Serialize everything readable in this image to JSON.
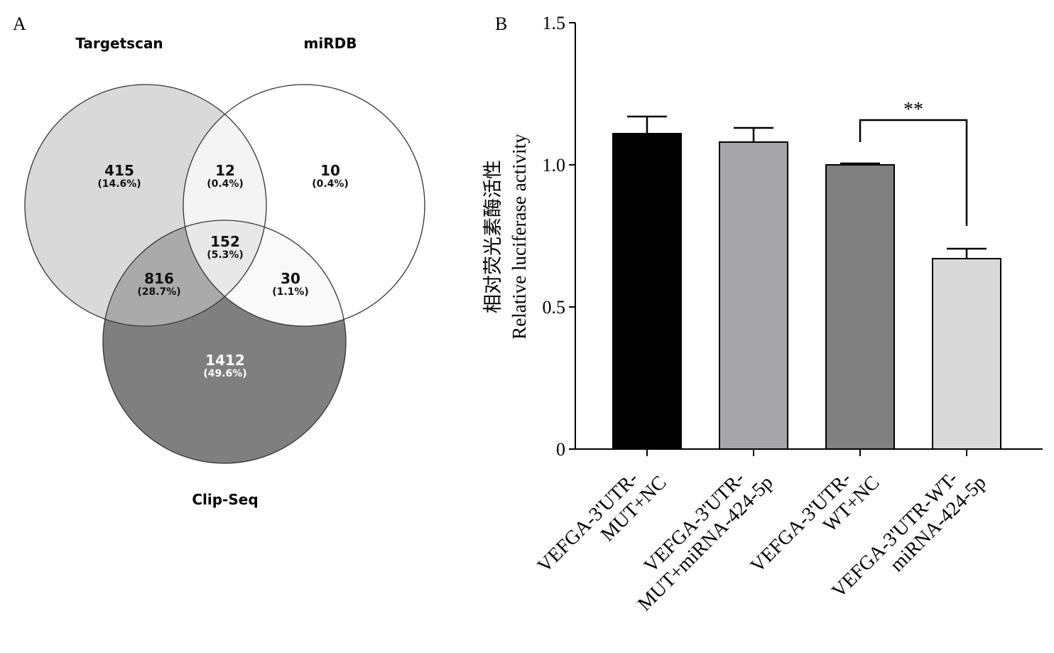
{
  "panel_a": {
    "label": "A",
    "set_labels": {
      "targetscan": "Targetscan",
      "mirdb": "miRDB",
      "clipseq": "Clip-Seq"
    },
    "regions": [
      {
        "id": "ts-only",
        "count": "415",
        "pct": "(14.6%)",
        "fill": "#d9d9d9"
      },
      {
        "id": "ts-mirdb",
        "count": "12",
        "pct": "(0.4%)",
        "fill": "#f4f4f4"
      },
      {
        "id": "mirdb-only",
        "count": "10",
        "pct": "(0.4%)",
        "fill": "#ffffff"
      },
      {
        "id": "all-three",
        "count": "152",
        "pct": "(5.3%)",
        "fill": "#e8e8e8"
      },
      {
        "id": "ts-clip",
        "count": "816",
        "pct": "(28.7%)",
        "fill": "#aaaaaa"
      },
      {
        "id": "mirdb-clip",
        "count": "30",
        "pct": "(1.1%)",
        "fill": "#f9f9f9"
      },
      {
        "id": "clip-only",
        "count": "1412",
        "pct": "(49.6%)",
        "fill": "#7f7f7f"
      }
    ]
  },
  "panel_b": {
    "label": "B"
  },
  "chart_data": {
    "type": "bar",
    "categories": [
      "VEFGA-3'UTR-MUT+NC",
      "VEFGA-3'UTR-MUT+miRNA-424-5p",
      "VEFGA-3'UTR-WT+NC",
      "VEFGA-3'UTR-WT-miRNA-424-5p"
    ],
    "category_lines": [
      [
        "VEFGA-3'UTR-",
        "MUT+NC"
      ],
      [
        "VEFGA-3'UTR-",
        "MUT+miRNA-424-5p"
      ],
      [
        "VEFGA-3'UTR-",
        "WT+NC"
      ],
      [
        "VEFGA-3'UTR-WT-",
        "miRNA-424-5p"
      ]
    ],
    "values": [
      1.11,
      1.08,
      1.0,
      0.67
    ],
    "errors": [
      0.06,
      0.05,
      0.005,
      0.035
    ],
    "colors": [
      "#000000",
      "#a6a6aa",
      "#808080",
      "#d9d9d9"
    ],
    "ylabel_cn": "相对荧光素酶活性",
    "ylabel": "Relative luciferase activity",
    "ylim": [
      0,
      1.5
    ],
    "yticks": [
      0,
      0.5,
      1.0,
      1.5
    ],
    "ytick_labels": [
      "0",
      "0.5",
      "1.0",
      "1.5"
    ],
    "significance": {
      "between": [
        2,
        3
      ],
      "text": "**"
    }
  }
}
